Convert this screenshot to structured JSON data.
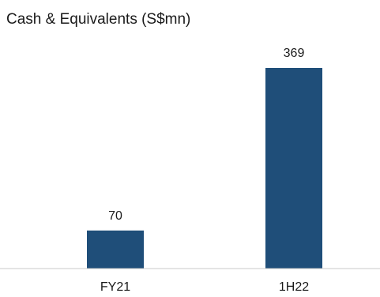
{
  "chart_data": {
    "type": "bar",
    "title": "Cash & Equivalents (S$mn)",
    "categories": [
      "FY21",
      "1H22"
    ],
    "values": [
      70,
      369
    ],
    "data_labels": [
      "70",
      "369"
    ],
    "xlabel": "",
    "ylabel": "",
    "ylim": [
      0,
      369
    ],
    "grid": false,
    "legend": "none",
    "colors": {
      "bar": "#1f4e79"
    }
  }
}
